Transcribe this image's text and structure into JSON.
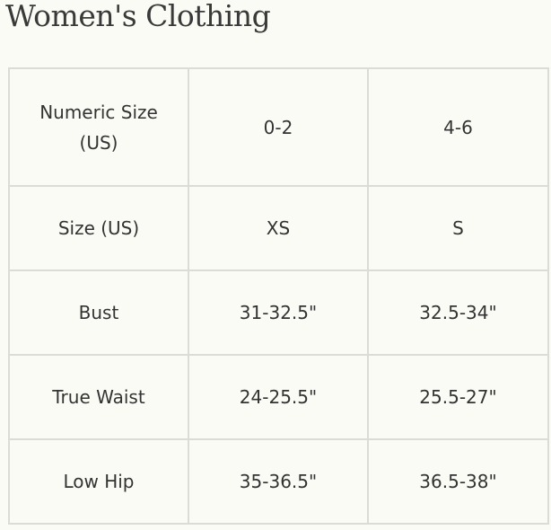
{
  "header": {
    "title": "Women's Clothing"
  },
  "table": {
    "rows": [
      [
        "Numeric Size (US)",
        "0-2",
        "4-6"
      ],
      [
        "Size (US)",
        "XS",
        "S"
      ],
      [
        "Bust",
        "31-32.5\"",
        "32.5-34\""
      ],
      [
        "True Waist",
        "24-25.5\"",
        "25.5-27\""
      ],
      [
        "Low Hip",
        "35-36.5\"",
        "36.5-38\""
      ]
    ]
  }
}
